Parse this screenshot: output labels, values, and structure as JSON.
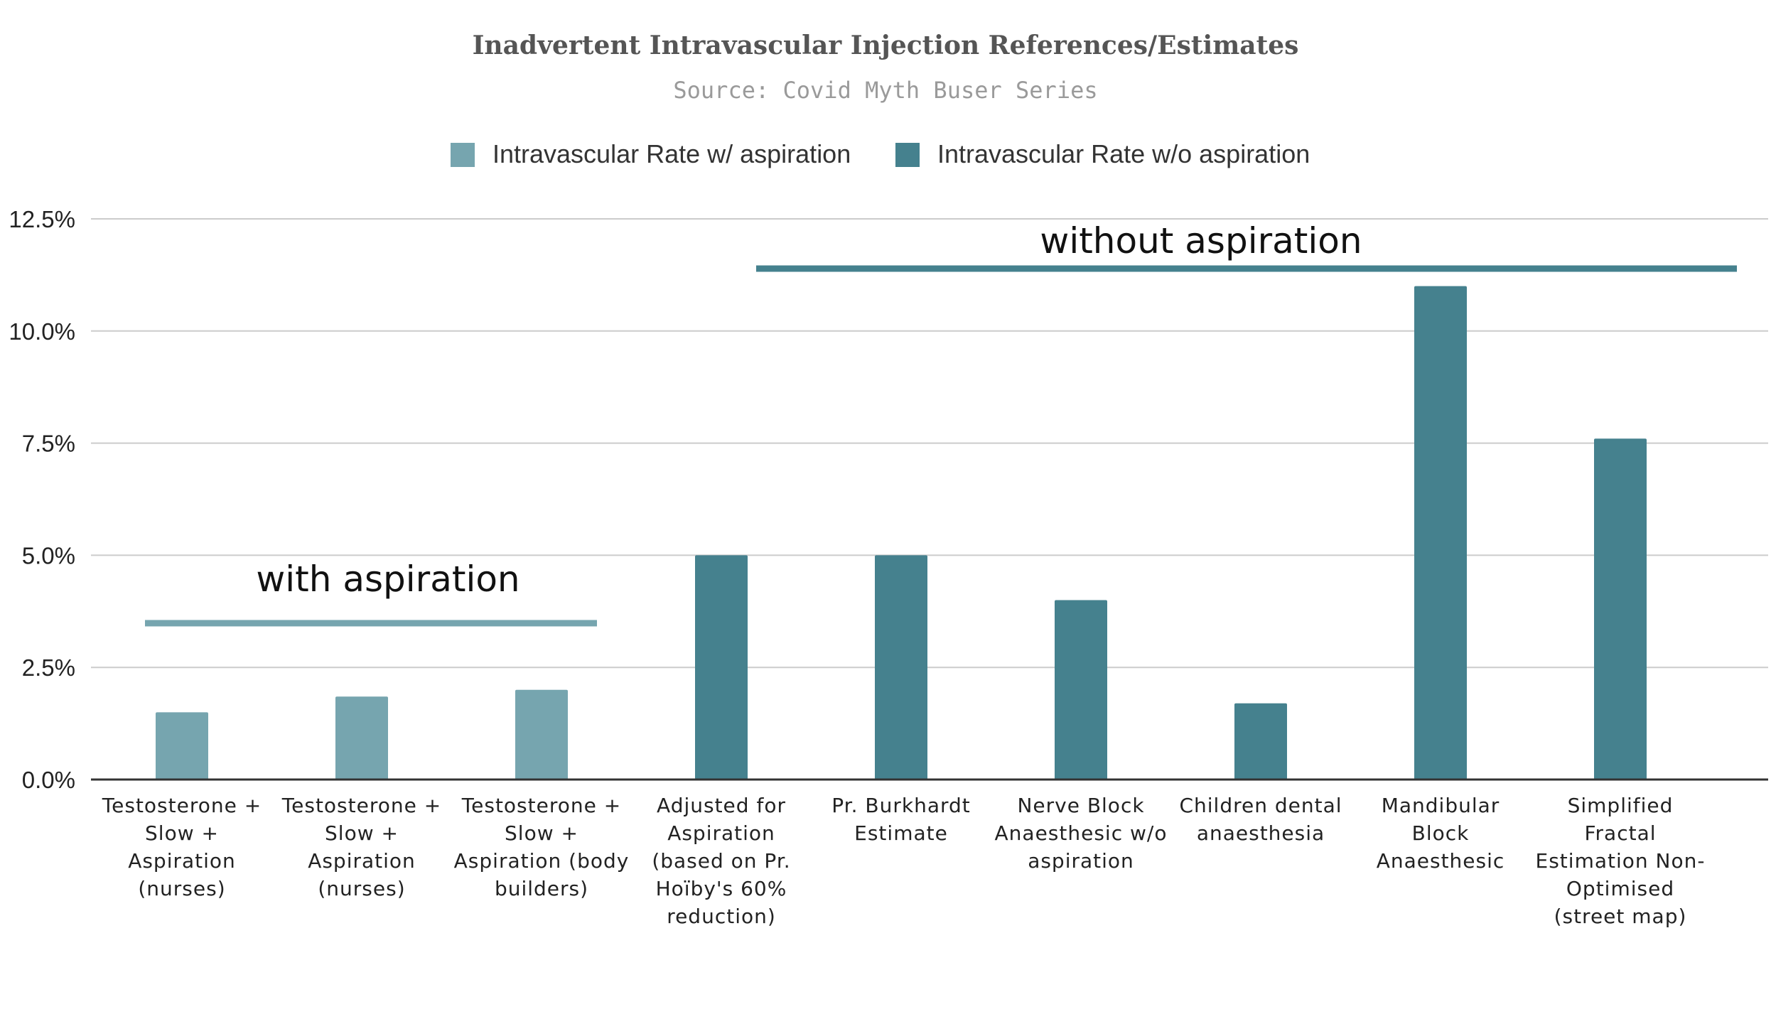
{
  "chart_data": {
    "type": "bar",
    "title": "Inadvertent Intravascular Injection References/Estimates",
    "subtitle": "Source: Covid Myth Buser Series",
    "xlabel": "",
    "ylabel": "",
    "ylim": [
      0,
      12.5
    ],
    "y_ticks": [
      "0.0%",
      "2.5%",
      "5.0%",
      "7.5%",
      "10.0%",
      "12.5%"
    ],
    "grid": true,
    "legend_position": "top",
    "categories": [
      [
        "Testosterone +",
        "Slow +",
        "Aspiration",
        "(nurses)"
      ],
      [
        "Testosterone +",
        "Slow +",
        "Aspiration",
        "(nurses)"
      ],
      [
        "Testosterone +",
        "Slow +",
        "Aspiration (body",
        "builders)"
      ],
      [
        "Adjusted for",
        "Aspiration",
        "(based on Pr.",
        "Hoïby's 60%",
        "reduction)"
      ],
      [
        "Pr. Burkhardt",
        "Estimate"
      ],
      [
        "Nerve Block",
        "Anaesthesic w/o",
        "aspiration"
      ],
      [
        "Children dental",
        "anaesthesia"
      ],
      [
        "Mandibular",
        "Block",
        "Anaesthesic"
      ],
      [
        "Simplified",
        "Fractal",
        "Estimation Non-",
        "Optimised",
        "(street map)"
      ]
    ],
    "series": [
      {
        "name": "Intravascular Rate w/ aspiration",
        "color": "#76a5af",
        "values": [
          1.5,
          1.85,
          2.0,
          null,
          null,
          null,
          null,
          null,
          null
        ]
      },
      {
        "name": "Intravascular Rate w/o aspiration",
        "color": "#45818e",
        "values": [
          null,
          null,
          null,
          5.0,
          5.0,
          4.0,
          1.7,
          11.0,
          7.6
        ]
      }
    ],
    "annotations": [
      {
        "text": "with aspiration",
        "color": "#76a5af",
        "spans_categories": [
          0,
          2
        ]
      },
      {
        "text": "without aspiration",
        "color": "#45818e",
        "spans_categories": [
          3,
          8
        ]
      }
    ]
  }
}
